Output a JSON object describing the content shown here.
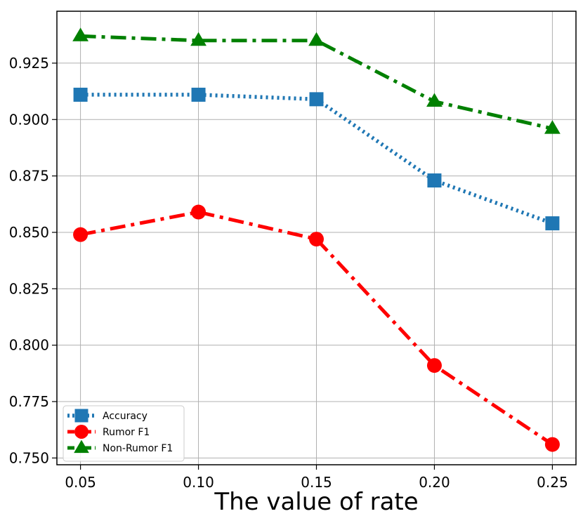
{
  "chart_data": {
    "type": "line",
    "title": "",
    "xlabel": "The value of rate",
    "ylabel": "",
    "x": [
      0.05,
      0.1,
      0.15,
      0.2,
      0.25
    ],
    "x_tick_labels": [
      "0.05",
      "0.10",
      "0.15",
      "0.20",
      "0.25"
    ],
    "y_ticks": [
      0.75,
      0.775,
      0.8,
      0.825,
      0.85,
      0.875,
      0.9,
      0.925
    ],
    "y_tick_labels": [
      "0.750",
      "0.775",
      "0.800",
      "0.825",
      "0.850",
      "0.875",
      "0.900",
      "0.925"
    ],
    "xlim": [
      0.04,
      0.26
    ],
    "ylim": [
      0.747,
      0.948
    ],
    "grid": true,
    "legend_position": "lower-left",
    "series": [
      {
        "name": "Accuracy",
        "values": [
          0.911,
          0.911,
          0.909,
          0.873,
          0.854
        ],
        "color": "#1f77b4",
        "line_style": "dotted",
        "marker": "square"
      },
      {
        "name": "Rumor F1",
        "values": [
          0.849,
          0.859,
          0.847,
          0.791,
          0.756
        ],
        "color": "#ff0000",
        "line_style": "dashdot",
        "marker": "circle"
      },
      {
        "name": "Non-Rumor F1",
        "values": [
          0.937,
          0.935,
          0.935,
          0.908,
          0.896
        ],
        "color": "#008000",
        "line_style": "dashdot",
        "marker": "triangle"
      }
    ]
  }
}
